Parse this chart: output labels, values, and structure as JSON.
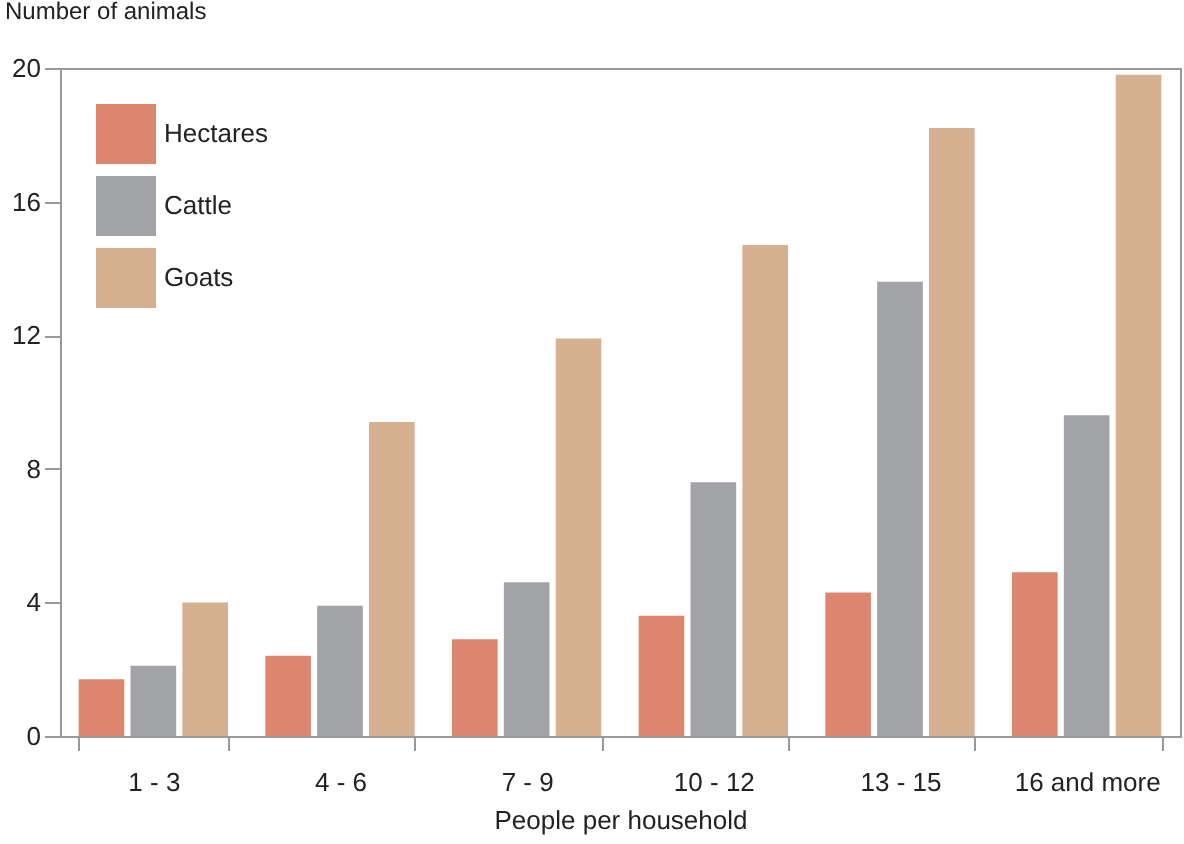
{
  "chart_data": {
    "type": "bar",
    "xlabel": "People per household",
    "ylabel": "Number of animals",
    "categories": [
      "1 - 3",
      "4 - 6",
      "7 - 9",
      "10 - 12",
      "13 - 15",
      "16 and more"
    ],
    "series": [
      {
        "name": "Hectares",
        "color": "#dc8670",
        "values": [
          1.7,
          2.4,
          2.9,
          3.6,
          4.3,
          4.9
        ]
      },
      {
        "name": "Cattle",
        "color": "#a2a3a7",
        "values": [
          2.1,
          3.9,
          4.6,
          7.6,
          13.6,
          9.6
        ]
      },
      {
        "name": "Goats",
        "color": "#d5b091",
        "values": [
          4.0,
          9.4,
          11.9,
          14.7,
          18.2,
          19.8
        ]
      }
    ],
    "ylim": [
      0,
      20
    ],
    "yticks": [
      0,
      4,
      8,
      12,
      16,
      20
    ],
    "grid": false,
    "legend": "top left"
  }
}
